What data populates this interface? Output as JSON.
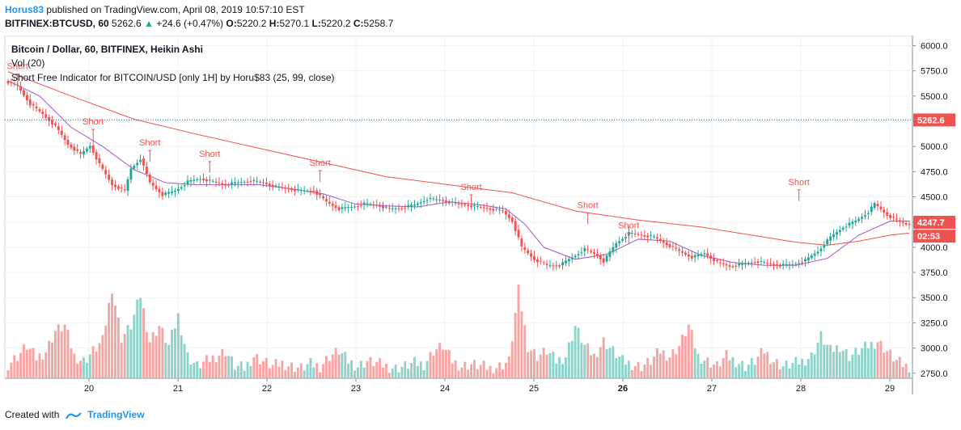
{
  "header": {
    "author": "Horus83",
    "published_text": "published on TradingView.com, April 08, 2019 10:57:10 EST",
    "symbol": "BITFINEX:BTCUSD, 60",
    "last_price": "5262.6",
    "change": "+24.6 (+0.47%)",
    "open_label": "O:",
    "open_value": "5220.2",
    "high_label": "H:",
    "high_value": "5270.1",
    "low_label": "L:",
    "low_value": "5220.2",
    "close_label": "C:",
    "close_value": "5258.7"
  },
  "legend": {
    "title": "Bitcoin / Dollar, 60, BITFINEX, Heikin Ashi",
    "volume": "Vol (20)",
    "indicator": "Short Free Indicator for BITCOIN/USD [only 1H] by Horu$83 (25, 99, close)"
  },
  "footer": {
    "created_with": "Created with",
    "brand": "TradingView"
  },
  "colors": {
    "up": "#26a69a",
    "down": "#ef5350",
    "vol_up": "#8fd3cb",
    "vol_down": "#f4a6a3",
    "ma_fast": "#a855c8",
    "ma_slow": "#ef5350",
    "price_line": "#2a6f8a",
    "short_text": "#ef5350"
  },
  "chart_data": {
    "type": "candlestick",
    "y_axis": {
      "min": 2700,
      "max": 6100,
      "ticks": [
        "6000.0",
        "5750.0",
        "5500.0",
        "5250.0",
        "5000.0",
        "4750.0",
        "4500.0",
        "4250.0",
        "4000.0",
        "3750.0",
        "3500.0",
        "3250.0",
        "3000.0",
        "2750.0"
      ],
      "tick_values": [
        6000,
        5750,
        5500,
        5250,
        5000,
        4750,
        4500,
        4250,
        4000,
        3750,
        3500,
        3250,
        3000,
        2750
      ]
    },
    "x_axis": {
      "labels": [
        "20",
        "21",
        "22",
        "23",
        "24",
        "25",
        "26",
        "27",
        "28",
        "29"
      ],
      "bold_labels": [
        "26"
      ]
    },
    "price_line_value": 5262.6,
    "price_labels": [
      {
        "text": "5262.6",
        "value": 5262.6,
        "color": "#ef5350"
      },
      {
        "text": "4247.7",
        "value": 4247.7,
        "color": "#ef5350"
      },
      {
        "text": "02:53",
        "value": 4110,
        "color": "#ef5350"
      }
    ],
    "price_path": [
      [
        0,
        5650
      ],
      [
        4,
        5600
      ],
      [
        8,
        5420
      ],
      [
        12,
        5320
      ],
      [
        16,
        5200
      ],
      [
        20,
        5020
      ],
      [
        24,
        4920
      ],
      [
        27,
        5010
      ],
      [
        30,
        4820
      ],
      [
        34,
        4620
      ],
      [
        38,
        4560
      ],
      [
        40,
        4780
      ],
      [
        43,
        4880
      ],
      [
        46,
        4640
      ],
      [
        50,
        4520
      ],
      [
        54,
        4560
      ],
      [
        58,
        4650
      ],
      [
        62,
        4680
      ],
      [
        66,
        4650
      ],
      [
        70,
        4620
      ],
      [
        74,
        4640
      ],
      [
        78,
        4660
      ],
      [
        82,
        4640
      ],
      [
        86,
        4600
      ],
      [
        90,
        4580
      ],
      [
        94,
        4560
      ],
      [
        98,
        4560
      ],
      [
        102,
        4450
      ],
      [
        106,
        4380
      ],
      [
        110,
        4400
      ],
      [
        114,
        4430
      ],
      [
        118,
        4420
      ],
      [
        122,
        4380
      ],
      [
        126,
        4390
      ],
      [
        130,
        4420
      ],
      [
        134,
        4480
      ],
      [
        138,
        4470
      ],
      [
        142,
        4440
      ],
      [
        146,
        4420
      ],
      [
        150,
        4400
      ],
      [
        154,
        4380
      ],
      [
        158,
        4360
      ],
      [
        161,
        4260
      ],
      [
        164,
        4000
      ],
      [
        168,
        3880
      ],
      [
        172,
        3820
      ],
      [
        176,
        3820
      ],
      [
        180,
        3900
      ],
      [
        184,
        3980
      ],
      [
        188,
        3920
      ],
      [
        190,
        3860
      ],
      [
        194,
        4040
      ],
      [
        198,
        4140
      ],
      [
        202,
        4120
      ],
      [
        206,
        4100
      ],
      [
        210,
        4030
      ],
      [
        214,
        3960
      ],
      [
        218,
        3900
      ],
      [
        222,
        3940
      ],
      [
        226,
        3850
      ],
      [
        230,
        3810
      ],
      [
        234,
        3830
      ],
      [
        238,
        3860
      ],
      [
        242,
        3840
      ],
      [
        246,
        3820
      ],
      [
        250,
        3830
      ],
      [
        254,
        3870
      ],
      [
        258,
        3960
      ],
      [
        262,
        4100
      ],
      [
        266,
        4200
      ],
      [
        270,
        4260
      ],
      [
        274,
        4350
      ],
      [
        276,
        4430
      ],
      [
        280,
        4320
      ],
      [
        284,
        4250
      ],
      [
        286,
        4230
      ]
    ],
    "ma_fast": [
      [
        0,
        5650
      ],
      [
        10,
        5500
      ],
      [
        20,
        5190
      ],
      [
        30,
        5000
      ],
      [
        40,
        4770
      ],
      [
        50,
        4640
      ],
      [
        60,
        4620
      ],
      [
        70,
        4620
      ],
      [
        80,
        4620
      ],
      [
        90,
        4580
      ],
      [
        100,
        4530
      ],
      [
        110,
        4430
      ],
      [
        120,
        4410
      ],
      [
        130,
        4400
      ],
      [
        140,
        4450
      ],
      [
        150,
        4420
      ],
      [
        158,
        4380
      ],
      [
        164,
        4230
      ],
      [
        170,
        4000
      ],
      [
        180,
        3880
      ],
      [
        190,
        3930
      ],
      [
        200,
        4080
      ],
      [
        210,
        4060
      ],
      [
        220,
        3920
      ],
      [
        230,
        3850
      ],
      [
        240,
        3820
      ],
      [
        250,
        3820
      ],
      [
        260,
        3890
      ],
      [
        270,
        4120
      ],
      [
        280,
        4260
      ],
      [
        286,
        4260
      ]
    ],
    "ma_slow": [
      [
        0,
        5740
      ],
      [
        20,
        5500
      ],
      [
        40,
        5270
      ],
      [
        60,
        5120
      ],
      [
        80,
        4980
      ],
      [
        100,
        4840
      ],
      [
        120,
        4700
      ],
      [
        140,
        4620
      ],
      [
        160,
        4540
      ],
      [
        180,
        4360
      ],
      [
        200,
        4270
      ],
      [
        220,
        4200
      ],
      [
        240,
        4100
      ],
      [
        250,
        4050
      ],
      [
        260,
        4020
      ],
      [
        270,
        4060
      ],
      [
        280,
        4120
      ],
      [
        286,
        4140
      ]
    ],
    "volume": [
      [
        0,
        2820
      ],
      [
        3,
        2900
      ],
      [
        6,
        3000
      ],
      [
        9,
        2880
      ],
      [
        12,
        2950
      ],
      [
        15,
        3150
      ],
      [
        18,
        3200
      ],
      [
        21,
        2900
      ],
      [
        24,
        2850
      ],
      [
        27,
        2950
      ],
      [
        30,
        3050
      ],
      [
        33,
        3580
      ],
      [
        36,
        3080
      ],
      [
        39,
        3200
      ],
      [
        42,
        3500
      ],
      [
        45,
        3050
      ],
      [
        48,
        3200
      ],
      [
        51,
        3000
      ],
      [
        54,
        3300
      ],
      [
        57,
        2900
      ],
      [
        60,
        2800
      ],
      [
        63,
        2850
      ],
      [
        66,
        2900
      ],
      [
        69,
        2950
      ],
      [
        72,
        2800
      ],
      [
        75,
        2780
      ],
      [
        78,
        2900
      ],
      [
        81,
        2850
      ],
      [
        84,
        2800
      ],
      [
        87,
        2830
      ],
      [
        90,
        2800
      ],
      [
        93,
        2780
      ],
      [
        96,
        2820
      ],
      [
        99,
        2800
      ],
      [
        102,
        2900
      ],
      [
        105,
        2950
      ],
      [
        108,
        2850
      ],
      [
        111,
        2800
      ],
      [
        114,
        2850
      ],
      [
        117,
        2830
      ],
      [
        120,
        2800
      ],
      [
        123,
        2780
      ],
      [
        126,
        2800
      ],
      [
        129,
        2830
      ],
      [
        132,
        2820
      ],
      [
        135,
        2950
      ],
      [
        138,
        3000
      ],
      [
        141,
        2850
      ],
      [
        144,
        2800
      ],
      [
        147,
        2820
      ],
      [
        150,
        2800
      ],
      [
        153,
        2780
      ],
      [
        156,
        2800
      ],
      [
        159,
        2850
      ],
      [
        162,
        3550
      ],
      [
        165,
        3000
      ],
      [
        168,
        2900
      ],
      [
        171,
        2950
      ],
      [
        174,
        2850
      ],
      [
        177,
        2900
      ],
      [
        180,
        3200
      ],
      [
        183,
        3000
      ],
      [
        186,
        2900
      ],
      [
        189,
        3050
      ],
      [
        192,
        2950
      ],
      [
        195,
        2850
      ],
      [
        198,
        2820
      ],
      [
        201,
        2800
      ],
      [
        204,
        2850
      ],
      [
        207,
        2950
      ],
      [
        210,
        2900
      ],
      [
        213,
        3000
      ],
      [
        216,
        3200
      ],
      [
        219,
        2900
      ],
      [
        222,
        2850
      ],
      [
        225,
        2800
      ],
      [
        228,
        2900
      ],
      [
        231,
        2850
      ],
      [
        234,
        2800
      ],
      [
        237,
        2850
      ],
      [
        240,
        2950
      ],
      [
        243,
        2850
      ],
      [
        246,
        2800
      ],
      [
        249,
        2820
      ],
      [
        252,
        2850
      ],
      [
        255,
        2900
      ],
      [
        258,
        3100
      ],
      [
        261,
        2950
      ],
      [
        264,
        3000
      ],
      [
        267,
        2900
      ],
      [
        270,
        2950
      ],
      [
        273,
        3000
      ],
      [
        276,
        3050
      ],
      [
        279,
        2950
      ],
      [
        282,
        2850
      ],
      [
        285,
        2800
      ]
    ],
    "short_signals": [
      {
        "label": "Short",
        "index": 27,
        "value": 5170
      },
      {
        "label": "Short",
        "index": 45,
        "value": 4960
      },
      {
        "label": "Short",
        "index": 64,
        "value": 4850
      },
      {
        "label": "Short",
        "index": 99,
        "value": 4760
      },
      {
        "label": "Short",
        "index": 147,
        "value": 4520
      },
      {
        "label": "Short",
        "index": 184,
        "value": 4340
      },
      {
        "label": "Short",
        "index": 197,
        "value": 4140
      },
      {
        "label": "Short",
        "index": 251,
        "value": 4570
      },
      {
        "label": "Short",
        "index": 3,
        "value": 5720
      }
    ]
  }
}
